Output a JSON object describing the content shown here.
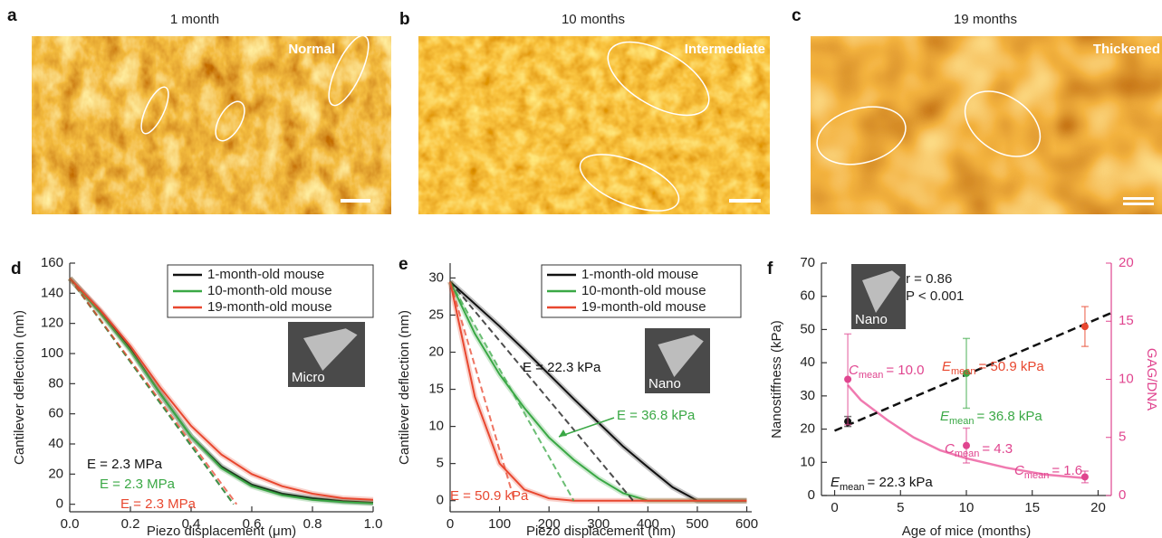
{
  "panels": [
    {
      "letter": "a",
      "title": "1 month",
      "tag": "Normal"
    },
    {
      "letter": "b",
      "title": "10 months",
      "tag": "Intermediate"
    },
    {
      "letter": "c",
      "title": "19 months",
      "tag": "Thickened"
    }
  ],
  "chart_data": [
    {
      "type": "line",
      "panel_label": "d",
      "xlabel": "Piezo displacement (μm)",
      "ylabel": "Cantilever deflection (nm)",
      "x": [
        0,
        0.1,
        0.2,
        0.3,
        0.4,
        0.5,
        0.6,
        0.7,
        0.8,
        0.9,
        1.0
      ],
      "xlim": [
        0,
        1
      ],
      "xticks": [
        {
          "value": 0,
          "label": "0.0"
        },
        {
          "value": 0.2,
          "label": "0.2"
        },
        {
          "value": 0.4,
          "label": "0.4"
        },
        {
          "value": 0.6,
          "label": "0.6"
        },
        {
          "value": 0.8,
          "label": "0.8"
        },
        {
          "value": 1,
          "label": "1.0"
        }
      ],
      "ylim": [
        -5,
        160
      ],
      "yticks": [
        0,
        20,
        40,
        60,
        80,
        100,
        120,
        140,
        160
      ],
      "series": [
        {
          "name": "1-month-old mouse",
          "color": "#111111",
          "values": [
            150,
            128,
            103,
            73,
            45,
            25,
            13,
            7,
            4,
            2,
            1
          ]
        },
        {
          "name": "10-month-old mouse",
          "color": "#3aa845",
          "values": [
            150,
            127,
            102,
            73,
            45,
            24,
            12,
            6,
            3,
            1.5,
            0.5
          ]
        },
        {
          "name": "19-month-old mouse",
          "color": "#e8472f",
          "values": [
            150,
            129,
            105,
            77,
            52,
            33,
            20,
            12,
            7,
            4,
            3
          ]
        }
      ],
      "fits": [
        {
          "color": "#111111",
          "x": [
            0,
            0.54
          ],
          "values": [
            150,
            0
          ]
        },
        {
          "color": "#3aa845",
          "x": [
            0,
            0.54
          ],
          "values": [
            150,
            0
          ]
        },
        {
          "color": "#e8472f",
          "x": [
            0,
            0.55
          ],
          "values": [
            150,
            0
          ]
        }
      ],
      "annotations": [
        {
          "text": "E = 2.3 MPa",
          "color": "#111111"
        },
        {
          "text": "E = 2.3 MPa",
          "color": "#3aa845"
        },
        {
          "text": "E = 2.3 MPa",
          "color": "#e8472f"
        }
      ],
      "inset": "Micro"
    },
    {
      "type": "line",
      "panel_label": "e",
      "xlabel": "Piezo displacement (nm)",
      "ylabel": "Cantilever deflection (nm)",
      "x": [
        0,
        50,
        100,
        150,
        200,
        250,
        300,
        350,
        400,
        450,
        500,
        550,
        600
      ],
      "xlim": [
        0,
        610
      ],
      "xticks": [
        0,
        100,
        200,
        300,
        400,
        500,
        600
      ],
      "ylim": [
        -1.5,
        32
      ],
      "yticks": [
        0,
        5,
        10,
        15,
        20,
        25,
        30
      ],
      "series": [
        {
          "name": "1-month-old mouse",
          "color": "#111111",
          "values": [
            29.5,
            26.5,
            23.5,
            20.3,
            17,
            13.7,
            10.5,
            7.3,
            4.5,
            1.8,
            0,
            0,
            0
          ]
        },
        {
          "name": "10-month-old mouse",
          "color": "#3aa845",
          "values": [
            29.5,
            22.5,
            17,
            12.5,
            8.5,
            5.5,
            3,
            1,
            0,
            0,
            0,
            0,
            0
          ]
        },
        {
          "name": "19-month-old mouse",
          "color": "#e8472f",
          "values": [
            29.5,
            14,
            5,
            1.5,
            0.3,
            0,
            0,
            0,
            0,
            0,
            0,
            0,
            0
          ]
        }
      ],
      "fits": [
        {
          "color": "#111111",
          "x": [
            0,
            370
          ],
          "values": [
            29.5,
            0
          ]
        },
        {
          "color": "#3aa845",
          "x": [
            0,
            250
          ],
          "values": [
            29.5,
            0
          ]
        },
        {
          "color": "#e8472f",
          "x": [
            0,
            130
          ],
          "values": [
            29.5,
            0
          ]
        }
      ],
      "annotations": [
        {
          "text": "E = 22.3 kPa",
          "color": "#111111"
        },
        {
          "text": "E = 36.8 kPa",
          "color": "#3aa845"
        },
        {
          "text": "E = 50.9 kPa",
          "color": "#e8472f"
        }
      ],
      "inset": "Nano"
    },
    {
      "type": "scatter",
      "panel_label": "f",
      "xlabel": "Age of mice (months)",
      "ylabel": "Nanostiffness (kPa)",
      "y2label": "GAG/DNA",
      "xlim": [
        -1,
        21
      ],
      "xticks": [
        0,
        5,
        10,
        15,
        20
      ],
      "ylim": [
        0,
        70
      ],
      "yticks": [
        0,
        10,
        20,
        30,
        40,
        50,
        60,
        70
      ],
      "y2lim": [
        0,
        20
      ],
      "y2ticks": [
        0,
        5,
        10,
        15,
        20
      ],
      "y2color": "#e0458f",
      "series": [
        {
          "x": [
            1,
            10,
            19
          ],
          "values": [
            22.3,
            36.8,
            50.9
          ],
          "errors": [
            1.5,
            10.5,
            6
          ],
          "colors": [
            "#111111",
            "#3aa845",
            "#e8472f"
          ],
          "label_symbol": "E",
          "label_sub": "mean",
          "value_labels": [
            "= 22.3 kPa",
            "= 36.8 kPa",
            "= 50.9 kPa"
          ]
        },
        {
          "axis": "y2",
          "x": [
            1,
            10,
            19
          ],
          "values": [
            10.0,
            4.3,
            1.6
          ],
          "errors": [
            3.9,
            1.5,
            0.5
          ],
          "color": "#e0458f",
          "label_symbol": "C",
          "label_sub": "mean",
          "value_labels": [
            "= 10.0",
            "= 4.3",
            "= 1.6"
          ]
        }
      ],
      "fit": {
        "color": "#111111",
        "x": [
          0,
          21
        ],
        "values": [
          19.5,
          55
        ]
      },
      "decay": {
        "axis": "y2",
        "color": "#f07ab0",
        "x": [
          1,
          2,
          4,
          6,
          8,
          10,
          13,
          16,
          19
        ],
        "values": [
          9.5,
          8.2,
          6.5,
          5.0,
          3.9,
          3.2,
          2.4,
          1.8,
          1.5
        ]
      },
      "annotations": [
        "r = 0.86",
        "P < 0.001"
      ],
      "inset": "Nano"
    }
  ]
}
